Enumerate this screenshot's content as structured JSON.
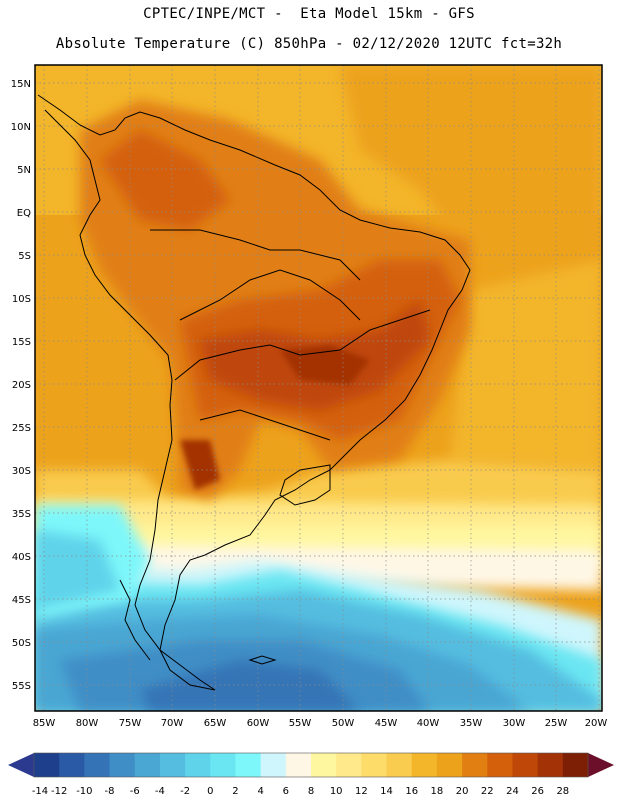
{
  "header": {
    "line1": "CPTEC/INPE/MCT -  Eta Model 15km - GFS",
    "line2": "Absolute Temperature (C) 850hPa - 02/12/2020 12UTC fct=32h"
  },
  "axes": {
    "lat_labels": [
      "15N",
      "10N",
      "5N",
      "EQ",
      "5S",
      "10S",
      "15S",
      "20S",
      "25S",
      "30S",
      "35S",
      "40S",
      "45S",
      "50S",
      "55S"
    ],
    "lon_labels": [
      "85W",
      "80W",
      "75W",
      "70W",
      "65W",
      "60W",
      "55W",
      "50W",
      "45W",
      "40W",
      "35W",
      "30W",
      "25W",
      "20W"
    ]
  },
  "legend": {
    "labels": [
      "-14",
      "-12",
      "-10",
      "-8",
      "-6",
      "-4",
      "-2",
      "0",
      "2",
      "4",
      "6",
      "8",
      "10",
      "12",
      "14",
      "16",
      "18",
      "20",
      "22",
      "24",
      "26",
      "28"
    ],
    "colors": [
      "#1e3f8c",
      "#2a5aa6",
      "#3474b6",
      "#3f8ec6",
      "#4aa6d3",
      "#55bde0",
      "#5fd3ea",
      "#6ae6f2",
      "#7ef7fa",
      "#cff6fc",
      "#fff7e6",
      "#fff7a0",
      "#ffe98a",
      "#fddc6a",
      "#f9cb4e",
      "#f3b52a",
      "#eda21c",
      "#e17f12",
      "#d4600c",
      "#bf4708",
      "#a33306",
      "#7d1f04"
    ],
    "under_color": "#2b3a8f",
    "over_color": "#6b0f2a"
  }
}
